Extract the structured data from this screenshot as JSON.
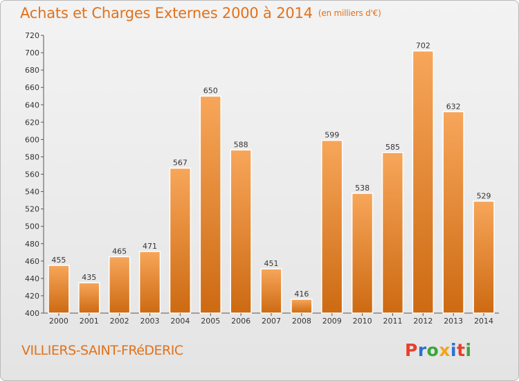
{
  "header": {
    "title": "Achats et Charges Externes 2000 à 2014",
    "unit": "(en milliers d'€)"
  },
  "footer": {
    "commune": "VILLIERS-SAINT-FRéDERIC",
    "logo_text": "Proxiti",
    "logo_letters": [
      {
        "ch": "P",
        "color": "#e8402c"
      },
      {
        "ch": "r",
        "color": "#2c6fd1"
      },
      {
        "ch": "o",
        "color": "#3aa63a"
      },
      {
        "ch": "x",
        "color": "#f2a51c"
      },
      {
        "ch": "i",
        "color": "#2c6fd1"
      },
      {
        "ch": "t",
        "color": "#e8402c"
      },
      {
        "ch": "i",
        "color": "#3aa63a"
      }
    ]
  },
  "colors": {
    "accent": "#e1711b",
    "bar_top": "#f7a65a",
    "bar_bottom": "#cd6a12"
  },
  "chart_data": {
    "type": "bar",
    "title": "Achats et Charges Externes 2000 à 2014",
    "unit_label": "(en milliers d'€)",
    "xlabel": "",
    "ylabel": "",
    "ylim": [
      400,
      720
    ],
    "ytick_step": 20,
    "grid": false,
    "categories": [
      "2000",
      "2001",
      "2002",
      "2003",
      "2004",
      "2005",
      "2006",
      "2007",
      "2008",
      "2009",
      "2010",
      "2011",
      "2012",
      "2013",
      "2014"
    ],
    "values": [
      455,
      435,
      465,
      471,
      567,
      650,
      588,
      451,
      416,
      599,
      538,
      585,
      702,
      632,
      529
    ]
  }
}
